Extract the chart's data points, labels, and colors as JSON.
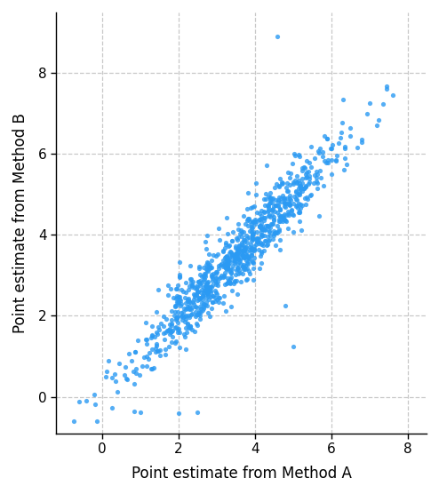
{
  "title": "",
  "xlabel": "Point estimate from Method A",
  "ylabel": "Point estimate from Method B",
  "dot_color": "#2b9af3",
  "dot_size": 14,
  "dot_alpha": 0.8,
  "xlim": [
    -1.2,
    8.5
  ],
  "ylim": [
    -0.9,
    9.5
  ],
  "xticks": [
    0,
    2,
    4,
    6,
    8
  ],
  "yticks": [
    0,
    2,
    4,
    6,
    8
  ],
  "grid_color": "#c8c8c8",
  "grid_style": "--",
  "background_color": "#ffffff",
  "n_points": 900,
  "mean_x": 3.5,
  "std_x": 1.3,
  "noise_std": 0.42,
  "seed": 12
}
